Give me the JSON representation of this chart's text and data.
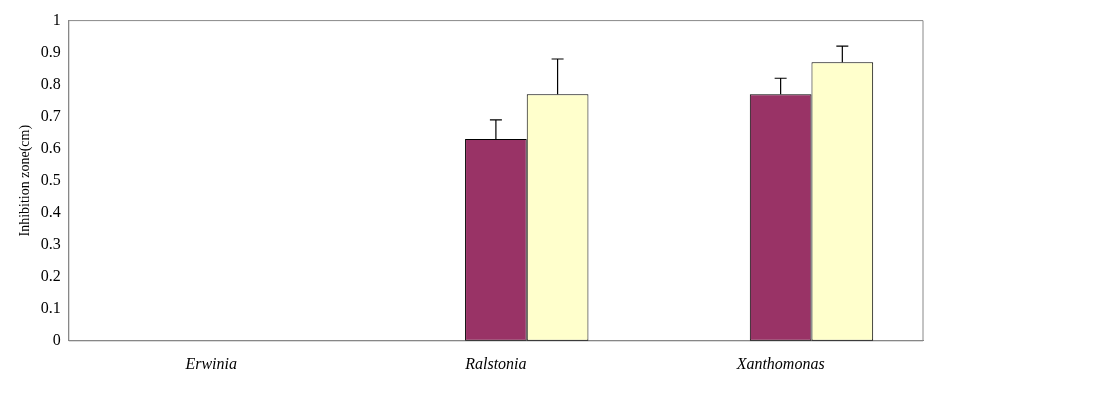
{
  "chart_data": {
    "type": "bar",
    "ylabel": "Inhibition zone(cm)",
    "categories": [
      "Erwinia",
      "Ralstonia",
      "Xanthomonas"
    ],
    "series": [
      {
        "color": "#9999ff",
        "values": [
          0,
          0,
          0
        ]
      },
      {
        "color": "#993366",
        "values": [
          0,
          0.63,
          0.77
        ],
        "errors": [
          null,
          [
            0.63,
            0.69
          ],
          [
            0.77,
            0.82
          ]
        ]
      },
      {
        "color": "#ffffcc",
        "values": [
          0,
          0.77,
          0.87
        ],
        "errors": [
          null,
          [
            0.77,
            0.88
          ],
          [
            0.87,
            0.92
          ]
        ]
      }
    ],
    "ylim": [
      0,
      1
    ],
    "yticks": [
      0,
      0.1,
      0.2,
      0.3,
      0.4,
      0.5,
      0.6,
      0.7,
      0.8,
      0.9,
      1
    ],
    "grid": false,
    "legend": false
  }
}
